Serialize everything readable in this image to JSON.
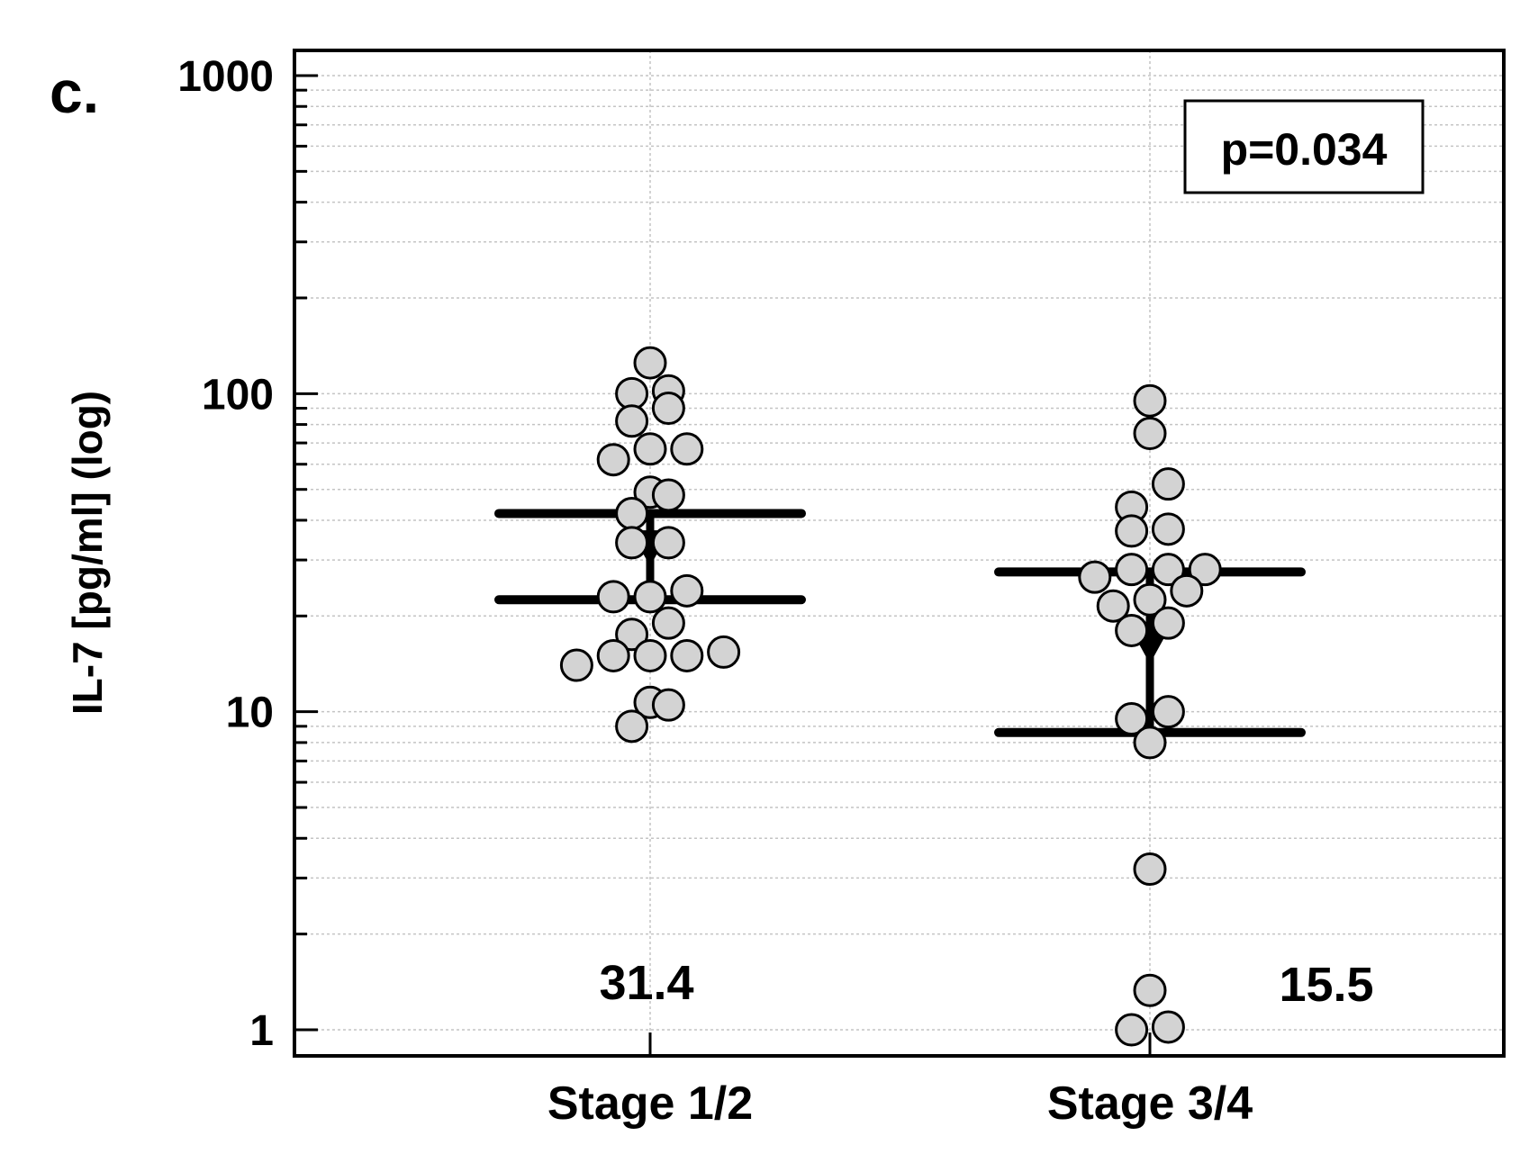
{
  "panel_label": "c.",
  "chart_data": {
    "type": "scatter",
    "title": "",
    "xlabel": "",
    "ylabel": "IL-7 [pg/ml] (log)",
    "y_scale": "log",
    "ylim": [
      0.93,
      1000
    ],
    "yticks": [
      "1",
      "10",
      "100",
      "1000"
    ],
    "grid": true,
    "categories": [
      "Stage 1/2",
      "Stage 3/4"
    ],
    "annotation": "p=0.034",
    "groups": [
      {
        "category": "Stage 1/2",
        "median_label": "31.4",
        "median": 31.4,
        "lower_bar": 22.5,
        "upper_bar": 42,
        "points": [
          {
            "x": 0,
            "y": 125
          },
          {
            "x": -0.4,
            "y": 100
          },
          {
            "x": 0.4,
            "y": 102
          },
          {
            "x": 0.4,
            "y": 90
          },
          {
            "x": -0.4,
            "y": 82
          },
          {
            "x": 0,
            "y": 67
          },
          {
            "x": 0.8,
            "y": 67
          },
          {
            "x": -0.8,
            "y": 62
          },
          {
            "x": 0,
            "y": 49
          },
          {
            "x": 0.4,
            "y": 48
          },
          {
            "x": -0.4,
            "y": 42
          },
          {
            "x": -0.4,
            "y": 34
          },
          {
            "x": 0.4,
            "y": 34
          },
          {
            "x": 0.8,
            "y": 24
          },
          {
            "x": -0.8,
            "y": 23
          },
          {
            "x": 0,
            "y": 23
          },
          {
            "x": 0.4,
            "y": 19
          },
          {
            "x": -0.4,
            "y": 17.5
          },
          {
            "x": -0.8,
            "y": 15
          },
          {
            "x": 0,
            "y": 15
          },
          {
            "x": 0.8,
            "y": 15
          },
          {
            "x": 1.6,
            "y": 15.4
          },
          {
            "x": -1.6,
            "y": 14
          },
          {
            "x": 0,
            "y": 10.7
          },
          {
            "x": 0.4,
            "y": 10.5
          },
          {
            "x": -0.4,
            "y": 9
          }
        ]
      },
      {
        "category": "Stage 3/4",
        "median_label": "15.5",
        "median": 15.5,
        "lower_bar": 8.6,
        "upper_bar": 27.5,
        "points": [
          {
            "x": 0,
            "y": 95
          },
          {
            "x": 0,
            "y": 75
          },
          {
            "x": 0.4,
            "y": 52
          },
          {
            "x": -0.4,
            "y": 44
          },
          {
            "x": -0.4,
            "y": 37
          },
          {
            "x": 0.4,
            "y": 37.5
          },
          {
            "x": -0.4,
            "y": 28
          },
          {
            "x": 0.4,
            "y": 28
          },
          {
            "x": 1.2,
            "y": 28
          },
          {
            "x": -1.2,
            "y": 26.5
          },
          {
            "x": 0.8,
            "y": 24
          },
          {
            "x": 0,
            "y": 22.5
          },
          {
            "x": -0.8,
            "y": 21.5
          },
          {
            "x": -0.4,
            "y": 18
          },
          {
            "x": 0.4,
            "y": 19
          },
          {
            "x": 0.4,
            "y": 10
          },
          {
            "x": -0.4,
            "y": 9.5
          },
          {
            "x": 0,
            "y": 8
          },
          {
            "x": 0,
            "y": 3.2
          },
          {
            "x": 0,
            "y": 1.33
          },
          {
            "x": -0.4,
            "y": 1
          },
          {
            "x": 0.4,
            "y": 1.02
          }
        ]
      }
    ]
  },
  "colors": {
    "point_fill": "#d3d3d3",
    "point_stroke": "#000000",
    "grid": "#c4c4c4",
    "axis": "#000000"
  }
}
